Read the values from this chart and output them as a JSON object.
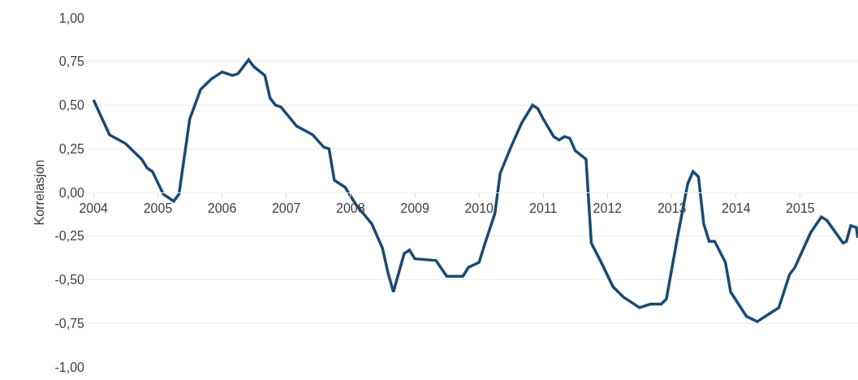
{
  "chart_data": {
    "type": "line",
    "ylabel": "Korrelasjon",
    "x": [
      "2004-01",
      "2004-04",
      "2004-07",
      "2004-10",
      "2004-11",
      "2004-12",
      "2005-02",
      "2005-04",
      "2005-05",
      "2005-07",
      "2005-09",
      "2005-11",
      "2006-01",
      "2006-03",
      "2006-04",
      "2006-06",
      "2006-07",
      "2006-09",
      "2006-10",
      "2006-11",
      "2006-12",
      "2007-03",
      "2007-06",
      "2007-08",
      "2007-09",
      "2007-10",
      "2007-12",
      "2008-02",
      "2008-05",
      "2008-07",
      "2008-08",
      "2008-09",
      "2008-11",
      "2008-12",
      "2009-01",
      "2009-05",
      "2009-07",
      "2009-10",
      "2009-11",
      "2010-01",
      "2010-02",
      "2010-04",
      "2010-05",
      "2010-07",
      "2010-09",
      "2010-11",
      "2010-12",
      "2011-01",
      "2011-03",
      "2011-04",
      "2011-05",
      "2011-06",
      "2011-07",
      "2011-09",
      "2011-10",
      "2011-12",
      "2012-02",
      "2012-04",
      "2012-07",
      "2012-09",
      "2012-11",
      "2012-12",
      "2013-02",
      "2013-04",
      "2013-05",
      "2013-06",
      "2013-07",
      "2013-08",
      "2013-09",
      "2013-11",
      "2013-12",
      "2014-03",
      "2014-05",
      "2014-07",
      "2014-09",
      "2014-11",
      "2014-12",
      "2015-03",
      "2015-05",
      "2015-06",
      "2015-09",
      "2015-09-20",
      "2015-10-15",
      "2015-11-15",
      "2015-11-24"
    ],
    "series": [
      {
        "color": "#1b4a72",
        "values": [
          0.53,
          0.33,
          0.28,
          0.19,
          0.14,
          0.12,
          -0.01,
          -0.05,
          -0.01,
          0.42,
          0.59,
          0.65,
          0.69,
          0.67,
          0.68,
          0.76,
          0.72,
          0.67,
          0.54,
          0.5,
          0.49,
          0.38,
          0.33,
          0.26,
          0.25,
          0.07,
          0.03,
          -0.07,
          -0.18,
          -0.32,
          -0.46,
          -0.57,
          -0.35,
          -0.33,
          -0.38,
          -0.39,
          -0.48,
          -0.48,
          -0.43,
          -0.4,
          -0.3,
          -0.12,
          0.11,
          0.26,
          0.4,
          0.5,
          0.48,
          0.42,
          0.32,
          0.3,
          0.32,
          0.31,
          0.24,
          0.19,
          -0.29,
          -0.41,
          -0.54,
          -0.6,
          -0.66,
          -0.64,
          -0.64,
          -0.61,
          -0.26,
          0.05,
          0.12,
          0.09,
          -0.18,
          -0.28,
          -0.28,
          -0.4,
          -0.57,
          -0.71,
          -0.74,
          -0.7,
          -0.66,
          -0.47,
          -0.43,
          -0.23,
          -0.14,
          -0.16,
          -0.29,
          -0.28,
          -0.19,
          -0.2,
          -0.26
        ]
      }
    ],
    "xlim": [
      "2003-11-15",
      "2015-11-25"
    ],
    "xticks": [
      "2004",
      "2005",
      "2006",
      "2007",
      "2008",
      "2009",
      "2010",
      "2011",
      "2012",
      "2013",
      "2014",
      "2015"
    ],
    "ylim": [
      -1,
      1
    ],
    "yticks": [
      {
        "value": 1,
        "label": "1,00"
      },
      {
        "value": 0.75,
        "label": "0,75"
      },
      {
        "value": 0.5,
        "label": "0,50"
      },
      {
        "value": 0.25,
        "label": "0,25"
      },
      {
        "value": 0,
        "label": "0,00"
      },
      {
        "value": -0.25,
        "label": "-0,25"
      },
      {
        "value": -0.5,
        "label": "-0,50"
      },
      {
        "value": -0.75,
        "label": "-0,75"
      },
      {
        "value": -1,
        "label": "-1,00"
      }
    ],
    "grid": "y",
    "line_style": "solid"
  }
}
